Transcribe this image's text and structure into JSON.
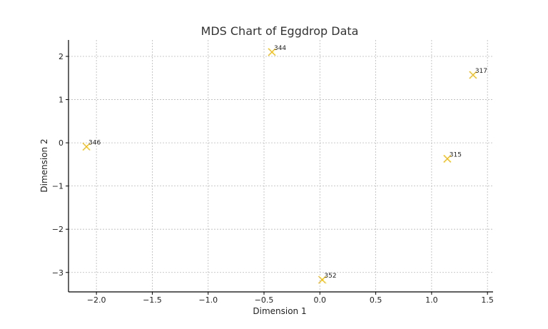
{
  "chart_data": {
    "type": "scatter",
    "title": "MDS Chart of Eggdrop Data",
    "xlabel": "Dimension 1",
    "ylabel": "Dimension 2",
    "xlim": [
      -2.25,
      1.55
    ],
    "ylim": [
      -3.45,
      2.38
    ],
    "xticks": [
      -2.0,
      -1.5,
      -1.0,
      -0.5,
      0.0,
      0.5,
      1.0,
      1.5
    ],
    "xtick_labels": [
      "−2.0",
      "−1.5",
      "−1.0",
      "−0.5",
      "0.0",
      "0.5",
      "1.0",
      "1.5"
    ],
    "yticks": [
      2,
      1,
      0,
      -1,
      -2,
      -3
    ],
    "ytick_labels": [
      "2",
      "1",
      "0",
      "−1",
      "−2",
      "−3"
    ],
    "grid": true,
    "marker": "x",
    "marker_color": "#F5B800",
    "points": [
      {
        "label": "344",
        "x": -0.43,
        "y": 2.1
      },
      {
        "label": "317",
        "x": 1.37,
        "y": 1.57
      },
      {
        "label": "346",
        "x": -2.09,
        "y": -0.09
      },
      {
        "label": "315",
        "x": 1.14,
        "y": -0.37
      },
      {
        "label": "352",
        "x": 0.02,
        "y": -3.17
      }
    ]
  }
}
